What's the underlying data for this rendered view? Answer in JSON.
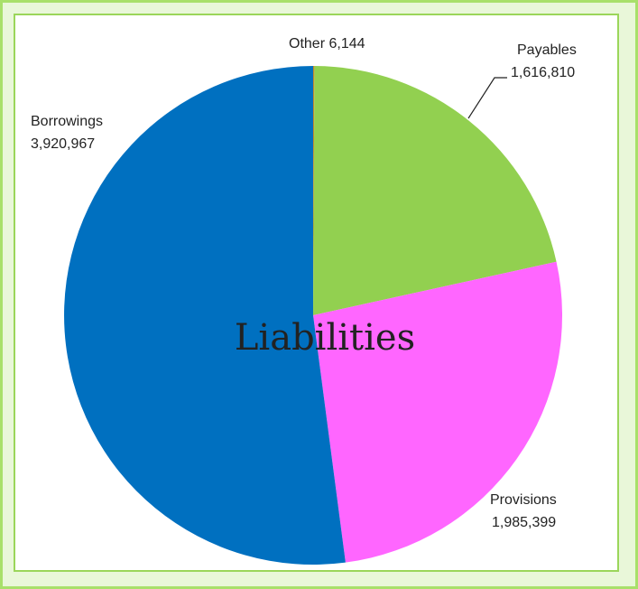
{
  "chart_data": {
    "type": "pie",
    "title": "Liabilities",
    "slices": [
      {
        "name": "Other",
        "value": 6144,
        "value_label": "6,144",
        "color": "#c58a2a"
      },
      {
        "name": "Payables",
        "value": 1616810,
        "value_label": "1,616,810",
        "color": "#92d050"
      },
      {
        "name": "Provisions",
        "value": 1985399,
        "value_label": "1,985,399",
        "color": "#ff66ff"
      },
      {
        "name": "Borrowings",
        "value": 3920967,
        "value_label": "3,920,967",
        "color": "#0070c0"
      }
    ],
    "start_angle_deg": 0,
    "direction": "clockwise",
    "legend": "none"
  }
}
